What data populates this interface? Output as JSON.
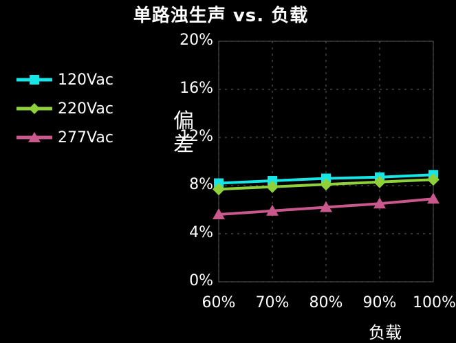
{
  "chart_data": {
    "type": "line",
    "title": "单路浊生声 vs. 负载",
    "xlabel": "负载",
    "ylabel": "偏差",
    "series": [
      {
        "name": "120Vac",
        "color": "#17e6e6",
        "marker": "square",
        "x": [
          60,
          70,
          80,
          90,
          100
        ],
        "y": [
          8.2,
          8.4,
          8.6,
          8.7,
          8.9
        ]
      },
      {
        "name": "220Vac",
        "color": "#8fd13a",
        "marker": "diamond",
        "x": [
          60,
          70,
          80,
          90,
          100
        ],
        "y": [
          7.7,
          7.9,
          8.1,
          8.3,
          8.5
        ]
      },
      {
        "name": "277Vac",
        "color": "#c9588c",
        "marker": "triangle",
        "x": [
          60,
          70,
          80,
          90,
          100
        ],
        "y": [
          5.6,
          5.9,
          6.2,
          6.5,
          6.9
        ]
      }
    ],
    "xticks": [
      "60%",
      "70%",
      "80%",
      "90%",
      "100%"
    ],
    "yticks": [
      "0%",
      "4%",
      "8%",
      "12%",
      "16%",
      "20%"
    ],
    "ylim": [
      0,
      20
    ],
    "grid": true,
    "legend": "top-left"
  }
}
